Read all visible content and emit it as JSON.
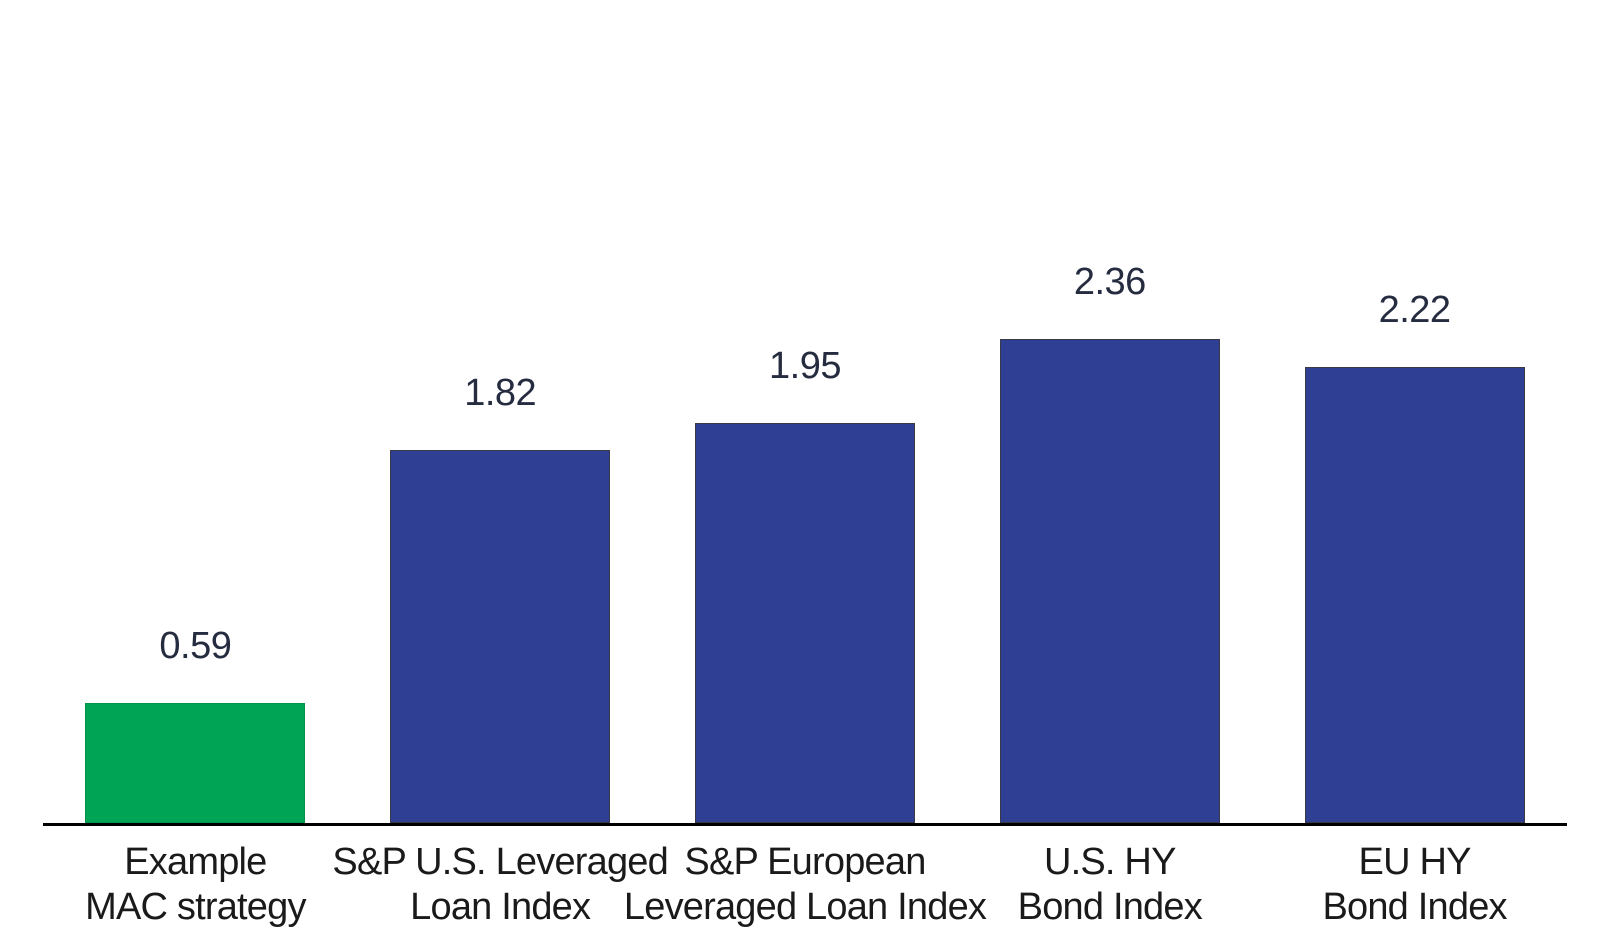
{
  "chart_data": {
    "type": "bar",
    "categories": [
      [
        "Example",
        "MAC strategy"
      ],
      [
        "S&P U.S. Leveraged",
        "Loan Index"
      ],
      [
        "S&P European",
        "Leveraged Loan Index"
      ],
      [
        "U.S. HY",
        "Bond Index"
      ],
      [
        "EU HY",
        "Bond Index"
      ]
    ],
    "values": [
      0.59,
      1.82,
      1.95,
      2.36,
      2.22
    ],
    "value_labels": [
      "0.59",
      "1.82",
      "1.95",
      "2.36",
      "2.22"
    ],
    "bar_colors": [
      "#00A455",
      "#2F4094",
      "#2F4094",
      "#2F4094",
      "#2F4094"
    ],
    "bar_border_colors": [
      "rgba(0,0,0,0.10)",
      "#3A3A46",
      "#3A3A46",
      "#3A3A46",
      "#3A3A46"
    ],
    "title": "",
    "xlabel": "",
    "ylabel": "",
    "ylim": [
      0,
      2.8
    ],
    "grid": false,
    "legend": "none",
    "colors": {
      "highlight_green": "#00A455",
      "index_blue": "#2F4094",
      "value_label": "#262C40",
      "category_label": "#1A1A1A",
      "axis_line": "#000000",
      "background": "#FFFFFF"
    }
  }
}
